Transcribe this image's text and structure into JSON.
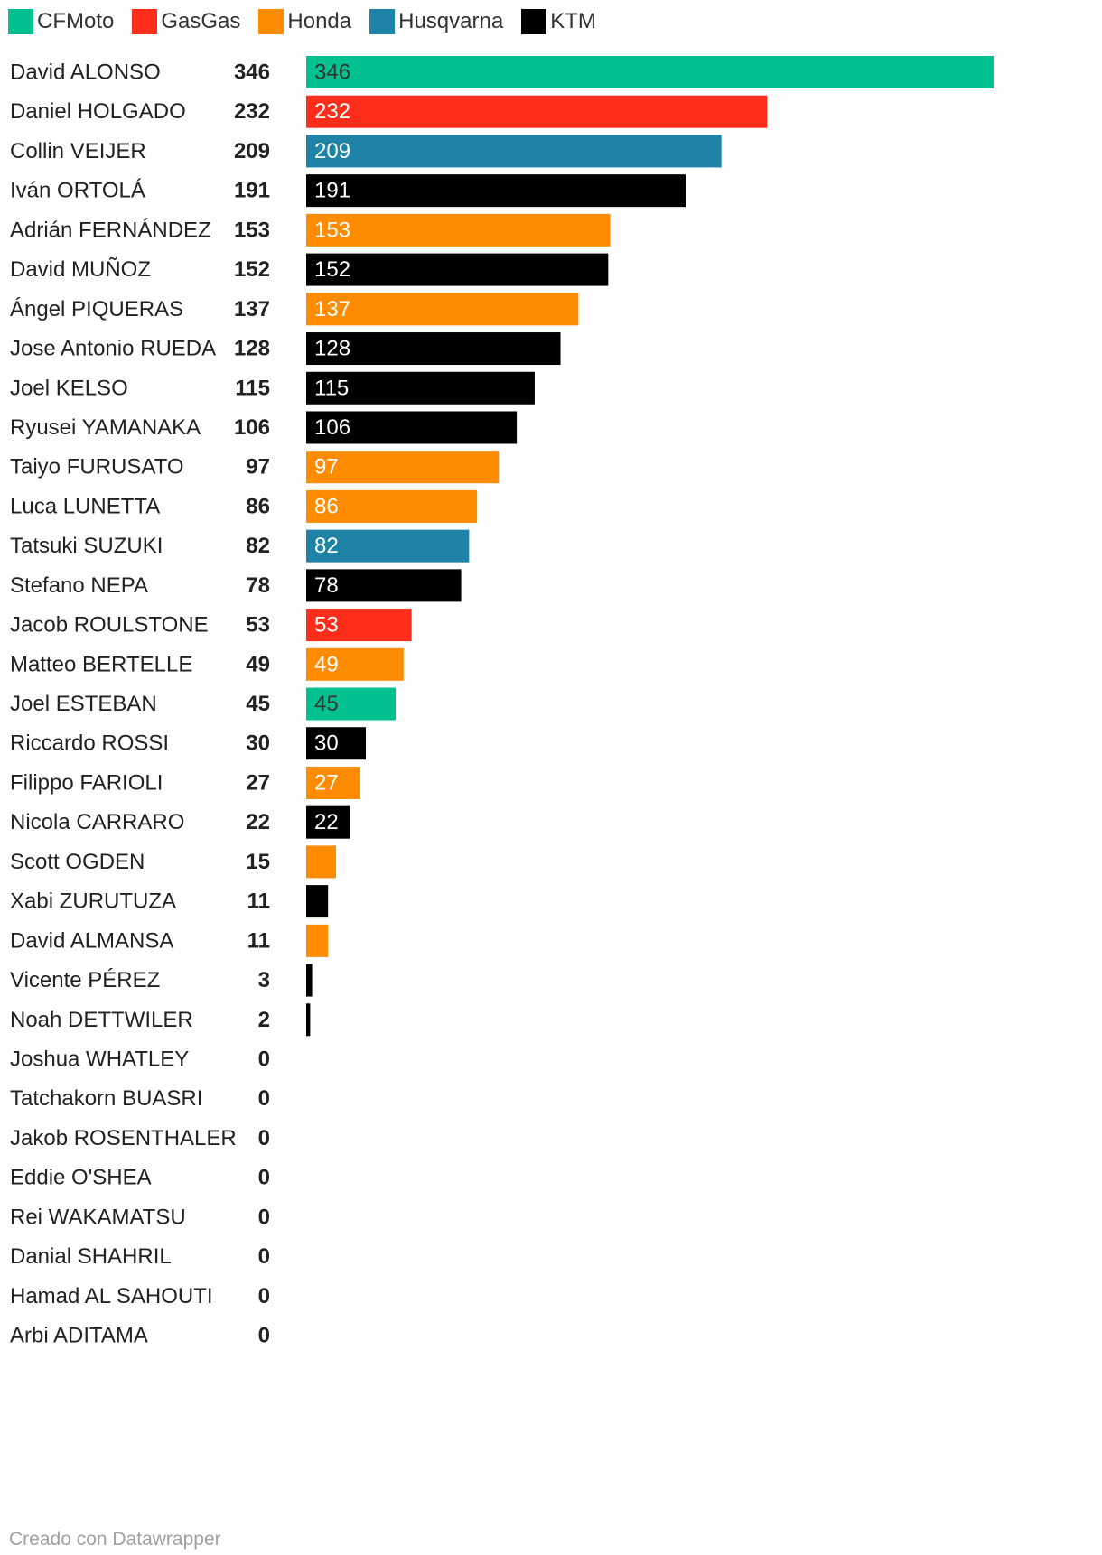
{
  "legend": [
    {
      "name": "CFMoto",
      "color": "#00c18f"
    },
    {
      "name": "GasGas",
      "color": "#ff2d1a"
    },
    {
      "name": "Honda",
      "color": "#ff8c00"
    },
    {
      "name": "Husqvarna",
      "color": "#1f83a8"
    },
    {
      "name": "KTM",
      "color": "#000000"
    }
  ],
  "chart_data": {
    "type": "bar",
    "orientation": "horizontal",
    "xlim": [
      0,
      346
    ],
    "grid": false,
    "legend_position": "top-left",
    "rows": [
      {
        "name": "David ALONSO",
        "value": 346,
        "team": "CFMoto",
        "label": "346"
      },
      {
        "name": "Daniel HOLGADO",
        "value": 232,
        "team": "GasGas",
        "label": "232"
      },
      {
        "name": "Collin VEIJER",
        "value": 209,
        "team": "Husqvarna",
        "label": "209"
      },
      {
        "name": "Iván ORTOLÁ",
        "value": 191,
        "team": "KTM",
        "label": "191"
      },
      {
        "name": "Adrián FERNÁNDEZ",
        "value": 153,
        "team": "Honda",
        "label": "153"
      },
      {
        "name": "David MUÑOZ",
        "value": 152,
        "team": "KTM",
        "label": "152"
      },
      {
        "name": "Ángel PIQUERAS",
        "value": 137,
        "team": "Honda",
        "label": "137"
      },
      {
        "name": "Jose Antonio RUEDA",
        "value": 128,
        "team": "KTM",
        "label": "128"
      },
      {
        "name": "Joel KELSO",
        "value": 115,
        "team": "KTM",
        "label": "115"
      },
      {
        "name": "Ryusei YAMANAKA",
        "value": 106,
        "team": "KTM",
        "label": "106"
      },
      {
        "name": "Taiyo FURUSATO",
        "value": 97,
        "team": "Honda",
        "label": "97"
      },
      {
        "name": "Luca LUNETTA",
        "value": 86,
        "team": "Honda",
        "label": "86"
      },
      {
        "name": "Tatsuki SUZUKI",
        "value": 82,
        "team": "Husqvarna",
        "label": "82"
      },
      {
        "name": "Stefano NEPA",
        "value": 78,
        "team": "KTM",
        "label": "78"
      },
      {
        "name": "Jacob ROULSTONE",
        "value": 53,
        "team": "GasGas",
        "label": "53"
      },
      {
        "name": "Matteo BERTELLE",
        "value": 49,
        "team": "Honda",
        "label": "49"
      },
      {
        "name": "Joel ESTEBAN",
        "value": 45,
        "team": "CFMoto",
        "label": "45"
      },
      {
        "name": "Riccardo ROSSI",
        "value": 30,
        "team": "KTM",
        "label": "30"
      },
      {
        "name": "Filippo FARIOLI",
        "value": 27,
        "team": "Honda",
        "label": "27"
      },
      {
        "name": "Nicola CARRARO",
        "value": 22,
        "team": "KTM",
        "label": "22"
      },
      {
        "name": "Scott OGDEN",
        "value": 15,
        "team": "Honda",
        "label": ""
      },
      {
        "name": "Xabi ZURUTUZA",
        "value": 11,
        "team": "KTM",
        "label": ""
      },
      {
        "name": "David ALMANSA",
        "value": 11,
        "team": "Honda",
        "label": ""
      },
      {
        "name": "Vicente PÉREZ",
        "value": 3,
        "team": "KTM",
        "label": ""
      },
      {
        "name": "Noah DETTWILER",
        "value": 2,
        "team": "KTM",
        "label": ""
      },
      {
        "name": "Joshua WHATLEY",
        "value": 0,
        "team": "",
        "label": ""
      },
      {
        "name": "Tatchakorn BUASRI",
        "value": 0,
        "team": "",
        "label": ""
      },
      {
        "name": "Jakob ROSENTHALER",
        "value": 0,
        "team": "",
        "label": ""
      },
      {
        "name": "Eddie O'SHEA",
        "value": 0,
        "team": "",
        "label": ""
      },
      {
        "name": "Rei WAKAMATSU",
        "value": 0,
        "team": "",
        "label": ""
      },
      {
        "name": "Danial SHAHRIL",
        "value": 0,
        "team": "",
        "label": ""
      },
      {
        "name": "Hamad AL SAHOUTI",
        "value": 0,
        "team": "",
        "label": ""
      },
      {
        "name": "Arbi ADITAMA",
        "value": 0,
        "team": "",
        "label": ""
      }
    ]
  },
  "footer": {
    "credit": "Creado con Datawrapper"
  }
}
